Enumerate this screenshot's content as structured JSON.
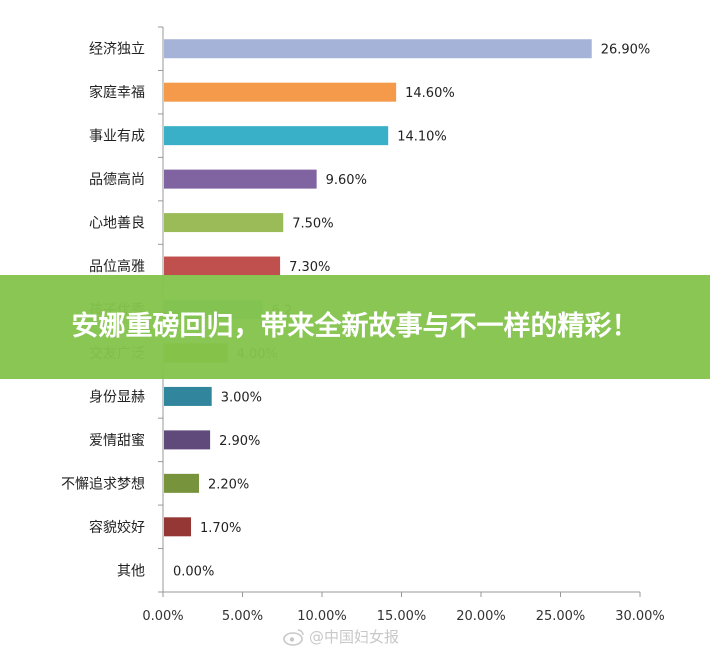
{
  "chart_data": {
    "type": "bar",
    "orientation": "horizontal",
    "categories": [
      "经济独立",
      "家庭幸福",
      "事业有成",
      "品德高尚",
      "心地善良",
      "品位高雅",
      "孩子优秀",
      "交友广泛",
      "身份显赫",
      "爱情甜蜜",
      "不懈追求梦想",
      "容貌姣好",
      "其他"
    ],
    "values": [
      26.9,
      14.6,
      14.1,
      9.6,
      7.5,
      7.3,
      6.2,
      4.0,
      3.0,
      2.9,
      2.2,
      1.7,
      0.0
    ],
    "data_labels": [
      "26.90%",
      "14.60%",
      "14.10%",
      "9.60%",
      "7.50%",
      "7.30%",
      "6.2",
      "4.00%",
      "3.00%",
      "2.90%",
      "2.20%",
      "1.70%",
      "0.00%"
    ],
    "colors": [
      "#a5b3d8",
      "#f59a4a",
      "#3ab0c8",
      "#8064a2",
      "#9bbb59",
      "#c0504d",
      "#4bacc6",
      "#7a9a28",
      "#31859c",
      "#604a7b",
      "#77933c",
      "#953735",
      "#4f81bd"
    ],
    "x_ticks": [
      "0.00%",
      "5.00%",
      "10.00%",
      "15.00%",
      "20.00%",
      "25.00%",
      "30.00%"
    ],
    "xlim": [
      0,
      30
    ],
    "grid": false,
    "title": "",
    "xlabel": "",
    "ylabel": ""
  },
  "overlay": {
    "headline": "安娜重磅回归，带来全新故事与不一样的精彩！",
    "banner_color": "#84c44c"
  },
  "watermark": {
    "text": "@中国妇女报",
    "icon": "weibo-icon"
  }
}
